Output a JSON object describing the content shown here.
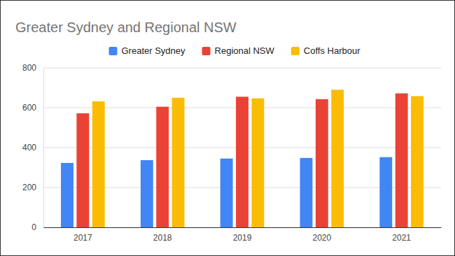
{
  "chart_data": {
    "type": "bar",
    "title": "Greater Sydney and Regional NSW",
    "categories": [
      "2017",
      "2018",
      "2019",
      "2020",
      "2021"
    ],
    "series": [
      {
        "name": "Greater Sydney",
        "color": "#4285f4",
        "values": [
          323,
          337,
          345,
          348,
          352
        ]
      },
      {
        "name": "Regional NSW",
        "color": "#ea4335",
        "values": [
          572,
          605,
          655,
          643,
          672
        ]
      },
      {
        "name": "Coffs Harbour",
        "color": "#fbbc04",
        "values": [
          632,
          650,
          647,
          690,
          658
        ]
      }
    ],
    "ylim": [
      0,
      800
    ],
    "yticks": [
      0,
      200,
      400,
      600,
      800
    ],
    "grid": true,
    "legend": "top"
  }
}
